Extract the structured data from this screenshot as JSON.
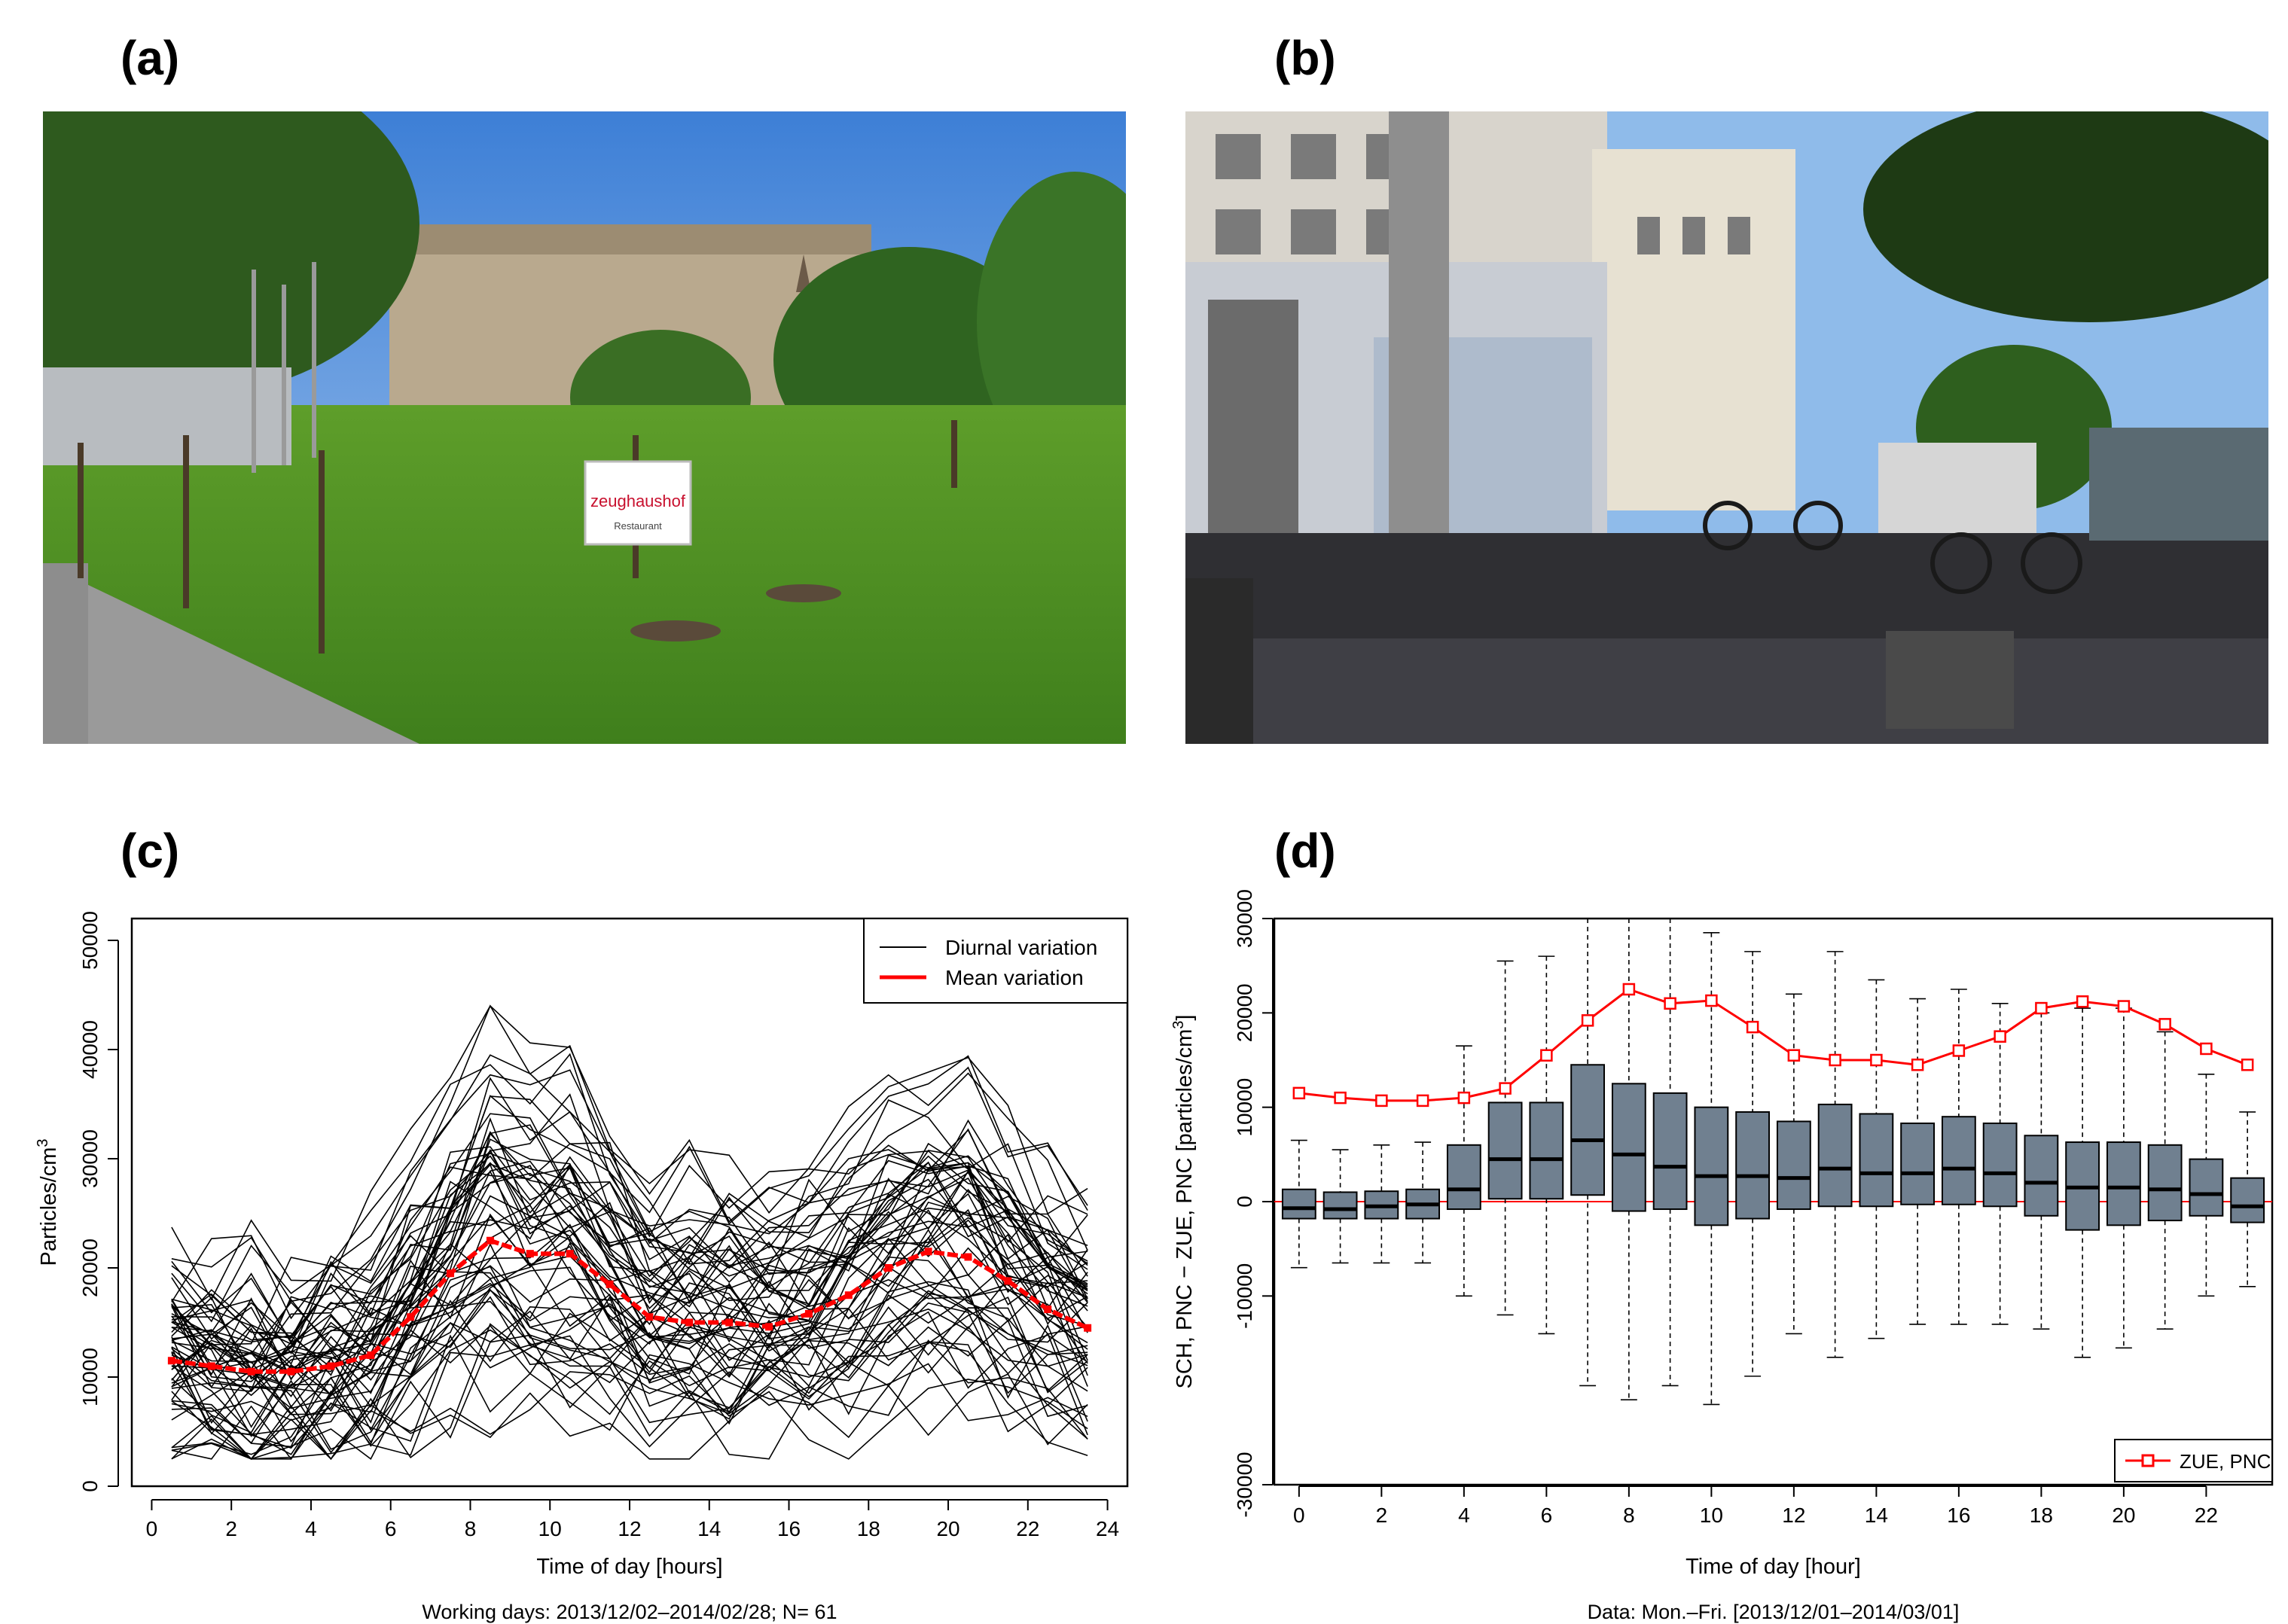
{
  "panels": {
    "a": {
      "label": "(a)"
    },
    "b": {
      "label": "(b)"
    },
    "c": {
      "label": "(c)"
    },
    "d": {
      "label": "(d)"
    }
  },
  "photo_a": {
    "sign_text": "zeughaushof",
    "sign_subtext": "Restaurant"
  },
  "colors": {
    "line_individual": "#000000",
    "line_mean": "#ff0000",
    "box_fill": "#708090",
    "zero_line": "#ff0000"
  },
  "chart_data": [
    {
      "panel": "(c)",
      "type": "line",
      "xlabel": "Time of day [hours]",
      "ylabel": "Particles/cm",
      "ylabel_superscript": "3",
      "footnote": "Working days: 2013/12/02–2014/02/28; N= 61",
      "xlim": [
        -0.5,
        24.5
      ],
      "ylim": [
        0,
        52000
      ],
      "xticks": [
        0,
        2,
        4,
        6,
        8,
        10,
        12,
        14,
        16,
        18,
        20,
        22,
        24
      ],
      "yticks": [
        0,
        10000,
        20000,
        30000,
        40000,
        50000
      ],
      "grid": false,
      "legend": {
        "position": "top-right",
        "entries": [
          "Diurnal variation",
          "Mean variation"
        ]
      },
      "x": [
        0.5,
        1.5,
        2.5,
        3.5,
        4.5,
        5.5,
        6.5,
        7.5,
        8.5,
        9.5,
        10.5,
        11.5,
        12.5,
        13.5,
        14.5,
        15.5,
        16.5,
        17.5,
        18.5,
        19.5,
        20.5,
        21.5,
        22.5,
        23.5
      ],
      "series": [
        {
          "name": "Mean variation",
          "values": [
            11500,
            11000,
            10500,
            10500,
            11000,
            12000,
            15500,
            19500,
            22500,
            21300,
            21300,
            18500,
            15500,
            15000,
            15000,
            14600,
            15800,
            17500,
            20000,
            21500,
            21000,
            18800,
            16200,
            14500
          ]
        },
        {
          "name": "Diurnal variation",
          "note": "61 individual working-day curves",
          "count": 61
        }
      ]
    },
    {
      "panel": "(d)",
      "type": "box",
      "xlabel": "Time of day [hour]",
      "ylabel": "SCH, PNC − ZUE, PNC [particles/cm",
      "ylabel_superscript": "3",
      "ylabel_end": "]",
      "footnote": "Data: Mon.–Fri. [2013/12/01–2014/03/01]",
      "xlim": [
        -0.6,
        23.6
      ],
      "ylim": [
        -30000,
        30000
      ],
      "xticks": [
        0,
        2,
        4,
        6,
        8,
        10,
        12,
        14,
        16,
        18,
        20,
        22
      ],
      "yticks": [
        -30000,
        -10000,
        0,
        10000,
        20000,
        30000
      ],
      "grid": false,
      "legend": {
        "position": "bottom-right",
        "entries": [
          "ZUE, PNC"
        ]
      },
      "categories": [
        0,
        1,
        2,
        3,
        4,
        5,
        6,
        7,
        8,
        9,
        10,
        11,
        12,
        13,
        14,
        15,
        16,
        17,
        18,
        19,
        20,
        21,
        22,
        23
      ],
      "boxes": [
        {
          "hour": 0,
          "low": -7000,
          "q1": -1800,
          "median": -700,
          "q3": 1300,
          "high": 6500
        },
        {
          "hour": 1,
          "low": -6500,
          "q1": -1800,
          "median": -800,
          "q3": 1000,
          "high": 5500
        },
        {
          "hour": 2,
          "low": -6500,
          "q1": -1800,
          "median": -500,
          "q3": 1100,
          "high": 6000
        },
        {
          "hour": 3,
          "low": -6500,
          "q1": -1800,
          "median": -300,
          "q3": 1300,
          "high": 6300
        },
        {
          "hour": 4,
          "low": -10000,
          "q1": -800,
          "median": 1300,
          "q3": 6000,
          "high": 16500
        },
        {
          "hour": 5,
          "low": -12000,
          "q1": 300,
          "median": 4500,
          "q3": 10500,
          "high": 25500
        },
        {
          "hour": 6,
          "low": -14000,
          "q1": 300,
          "median": 4500,
          "q3": 10500,
          "high": 26000
        },
        {
          "hour": 7,
          "low": -19500,
          "q1": 700,
          "median": 6500,
          "q3": 14500,
          "high": 31000
        },
        {
          "hour": 8,
          "low": -21000,
          "q1": -1000,
          "median": 5000,
          "q3": 12500,
          "high": 31000
        },
        {
          "hour": 9,
          "low": -19500,
          "q1": -800,
          "median": 3700,
          "q3": 11500,
          "high": 30000
        },
        {
          "hour": 10,
          "low": -21500,
          "q1": -2500,
          "median": 2700,
          "q3": 10000,
          "high": 28500
        },
        {
          "hour": 11,
          "low": -18500,
          "q1": -1800,
          "median": 2700,
          "q3": 9500,
          "high": 26500
        },
        {
          "hour": 12,
          "low": -14000,
          "q1": -800,
          "median": 2500,
          "q3": 8500,
          "high": 22000
        },
        {
          "hour": 13,
          "low": -16500,
          "q1": -500,
          "median": 3500,
          "q3": 10300,
          "high": 26500
        },
        {
          "hour": 14,
          "low": -14500,
          "q1": -500,
          "median": 3000,
          "q3": 9300,
          "high": 23500
        },
        {
          "hour": 15,
          "low": -13000,
          "q1": -300,
          "median": 3000,
          "q3": 8300,
          "high": 21500
        },
        {
          "hour": 16,
          "low": -13000,
          "q1": -300,
          "median": 3500,
          "q3": 9000,
          "high": 22500
        },
        {
          "hour": 17,
          "low": -13000,
          "q1": -500,
          "median": 3000,
          "q3": 8300,
          "high": 21000
        },
        {
          "hour": 18,
          "low": -13500,
          "q1": -1500,
          "median": 2000,
          "q3": 7000,
          "high": 20000
        },
        {
          "hour": 19,
          "low": -16500,
          "q1": -3000,
          "median": 1500,
          "q3": 6300,
          "high": 20500
        },
        {
          "hour": 20,
          "low": -15500,
          "q1": -2500,
          "median": 1500,
          "q3": 6300,
          "high": 20500
        },
        {
          "hour": 21,
          "low": -13500,
          "q1": -2000,
          "median": 1300,
          "q3": 6000,
          "high": 18000
        },
        {
          "hour": 22,
          "low": -10000,
          "q1": -1500,
          "median": 800,
          "q3": 4500,
          "high": 13500
        },
        {
          "hour": 23,
          "low": -9000,
          "q1": -2200,
          "median": -500,
          "q3": 2500,
          "high": 9500
        }
      ],
      "series": [
        {
          "name": "ZUE, PNC",
          "values": [
            11500,
            11000,
            10700,
            10700,
            11000,
            12000,
            15500,
            19200,
            22500,
            21000,
            21300,
            18500,
            15500,
            15000,
            15000,
            14500,
            16000,
            17500,
            20500,
            21200,
            20700,
            18800,
            16200,
            14500
          ]
        }
      ]
    }
  ]
}
